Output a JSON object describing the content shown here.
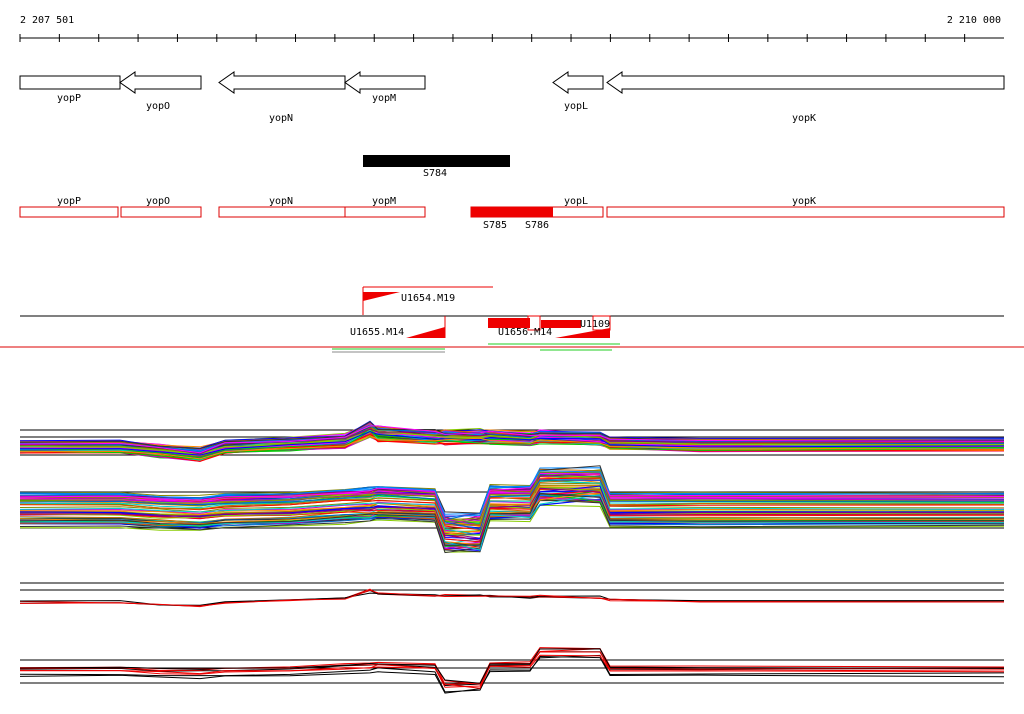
{
  "ruler": {
    "start": "2 207 501",
    "end": "2 210 000"
  },
  "genes": [
    "yopP",
    "yopO",
    "yopN",
    "yopM",
    "yopL",
    "yopK"
  ],
  "feature_track": {
    "label": "S784"
  },
  "gene_boxes": [
    "yopP",
    "yopO",
    "yopN",
    "yopM",
    "yopL",
    "yopK"
  ],
  "segments": [
    "S785",
    "S786"
  ],
  "probes": [
    "U1654.M19",
    "U1655.M14",
    "U1656.M14",
    "U1109"
  ]
}
